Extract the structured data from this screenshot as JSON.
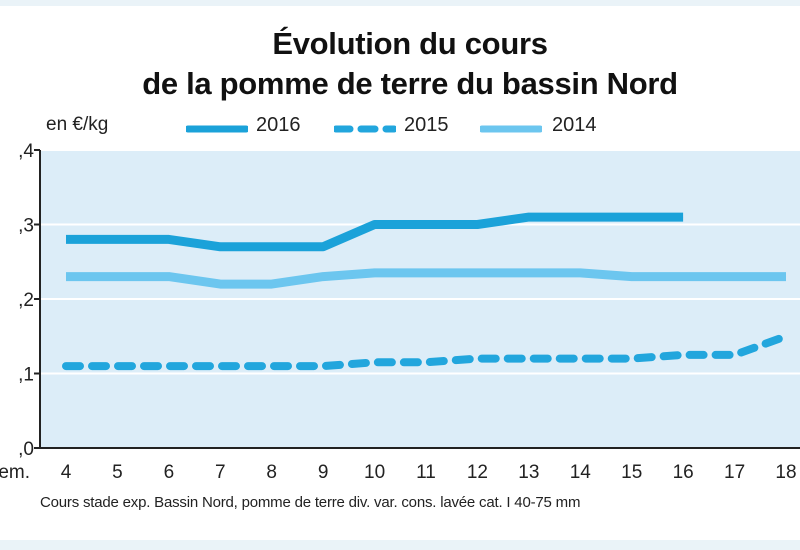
{
  "title_lines": [
    "Évolution du cours",
    "de la pomme de terre du bassin Nord"
  ],
  "colors": {
    "panel": "#dcedf8",
    "grid": "#ffffff",
    "series_2016": "#1ba2d9",
    "series_2015": "#22a6dd",
    "series_2014": "#6cc6ef"
  },
  "chart_data": {
    "type": "line",
    "title": "Évolution du cours de la pomme de terre du bassin Nord",
    "ylabel": "en €/kg",
    "xlabel": "Sem.",
    "ylim": [
      0.0,
      0.4
    ],
    "xlim": [
      4,
      18
    ],
    "x_ticks": [
      "4",
      "5",
      "6",
      "7",
      "8",
      "9",
      "10",
      "11",
      "12",
      "13",
      "14",
      "15",
      "16",
      "17",
      "18"
    ],
    "y_ticks": [
      ",0",
      ",1",
      ",2",
      ",3",
      ",4"
    ],
    "y_tick_values": [
      0.0,
      0.1,
      0.2,
      0.3,
      0.4
    ],
    "grid": true,
    "legend_position": "top",
    "series": [
      {
        "name": "2016",
        "style": "solid-thick",
        "points": [
          [
            4,
            0.28
          ],
          [
            6,
            0.28
          ],
          [
            7,
            0.27
          ],
          [
            9,
            0.27
          ],
          [
            10,
            0.3
          ],
          [
            12,
            0.3
          ],
          [
            13,
            0.31
          ],
          [
            16,
            0.31
          ]
        ]
      },
      {
        "name": "2015",
        "style": "dashed",
        "points": [
          [
            4,
            0.11
          ],
          [
            5,
            0.11
          ],
          [
            6,
            0.11
          ],
          [
            7,
            0.11
          ],
          [
            8,
            0.11
          ],
          [
            9,
            0.11
          ],
          [
            10,
            0.115
          ],
          [
            11,
            0.115
          ],
          [
            12,
            0.12
          ],
          [
            13,
            0.12
          ],
          [
            14,
            0.12
          ],
          [
            15,
            0.12
          ],
          [
            16,
            0.125
          ],
          [
            17,
            0.125
          ],
          [
            18,
            0.15
          ]
        ]
      },
      {
        "name": "2014",
        "style": "solid-light",
        "points": [
          [
            4,
            0.23
          ],
          [
            6,
            0.23
          ],
          [
            7,
            0.22
          ],
          [
            8,
            0.22
          ],
          [
            9,
            0.23
          ],
          [
            10,
            0.235
          ],
          [
            14,
            0.235
          ],
          [
            15,
            0.23
          ],
          [
            18,
            0.23
          ]
        ]
      }
    ]
  },
  "legend": [
    {
      "label": "2016"
    },
    {
      "label": "2015"
    },
    {
      "label": "2014"
    }
  ],
  "source_note": "Cours stade exp. Bassin Nord, pomme de terre div. var. cons. lavée cat. I 40-75 mm"
}
